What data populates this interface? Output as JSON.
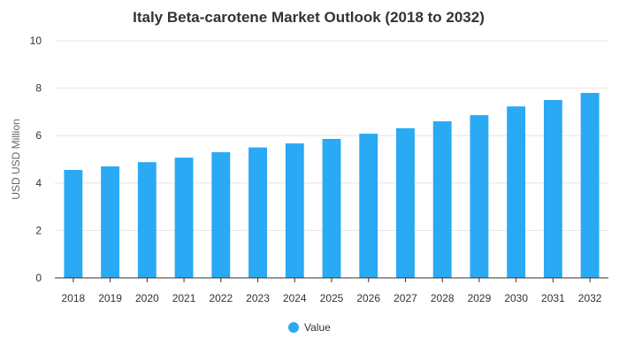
{
  "chart_data": {
    "type": "bar",
    "title": "Italy Beta-carotene Market Outlook (2018 to 2032)",
    "xlabel": "",
    "ylabel": "USD USD Million",
    "categories": [
      "2018",
      "2019",
      "2020",
      "2021",
      "2022",
      "2023",
      "2024",
      "2025",
      "2026",
      "2027",
      "2028",
      "2029",
      "2030",
      "2031",
      "2032"
    ],
    "series": [
      {
        "name": "Value",
        "color": "#2aa9f4",
        "values": [
          4.55,
          4.7,
          4.88,
          5.07,
          5.3,
          5.5,
          5.67,
          5.86,
          6.08,
          6.31,
          6.6,
          6.86,
          7.23,
          7.5,
          7.8
        ]
      }
    ],
    "ylim": [
      0,
      10
    ],
    "yticks": [
      0,
      2,
      4,
      6,
      8,
      10
    ],
    "grid": true,
    "legend": "bottom-center"
  }
}
